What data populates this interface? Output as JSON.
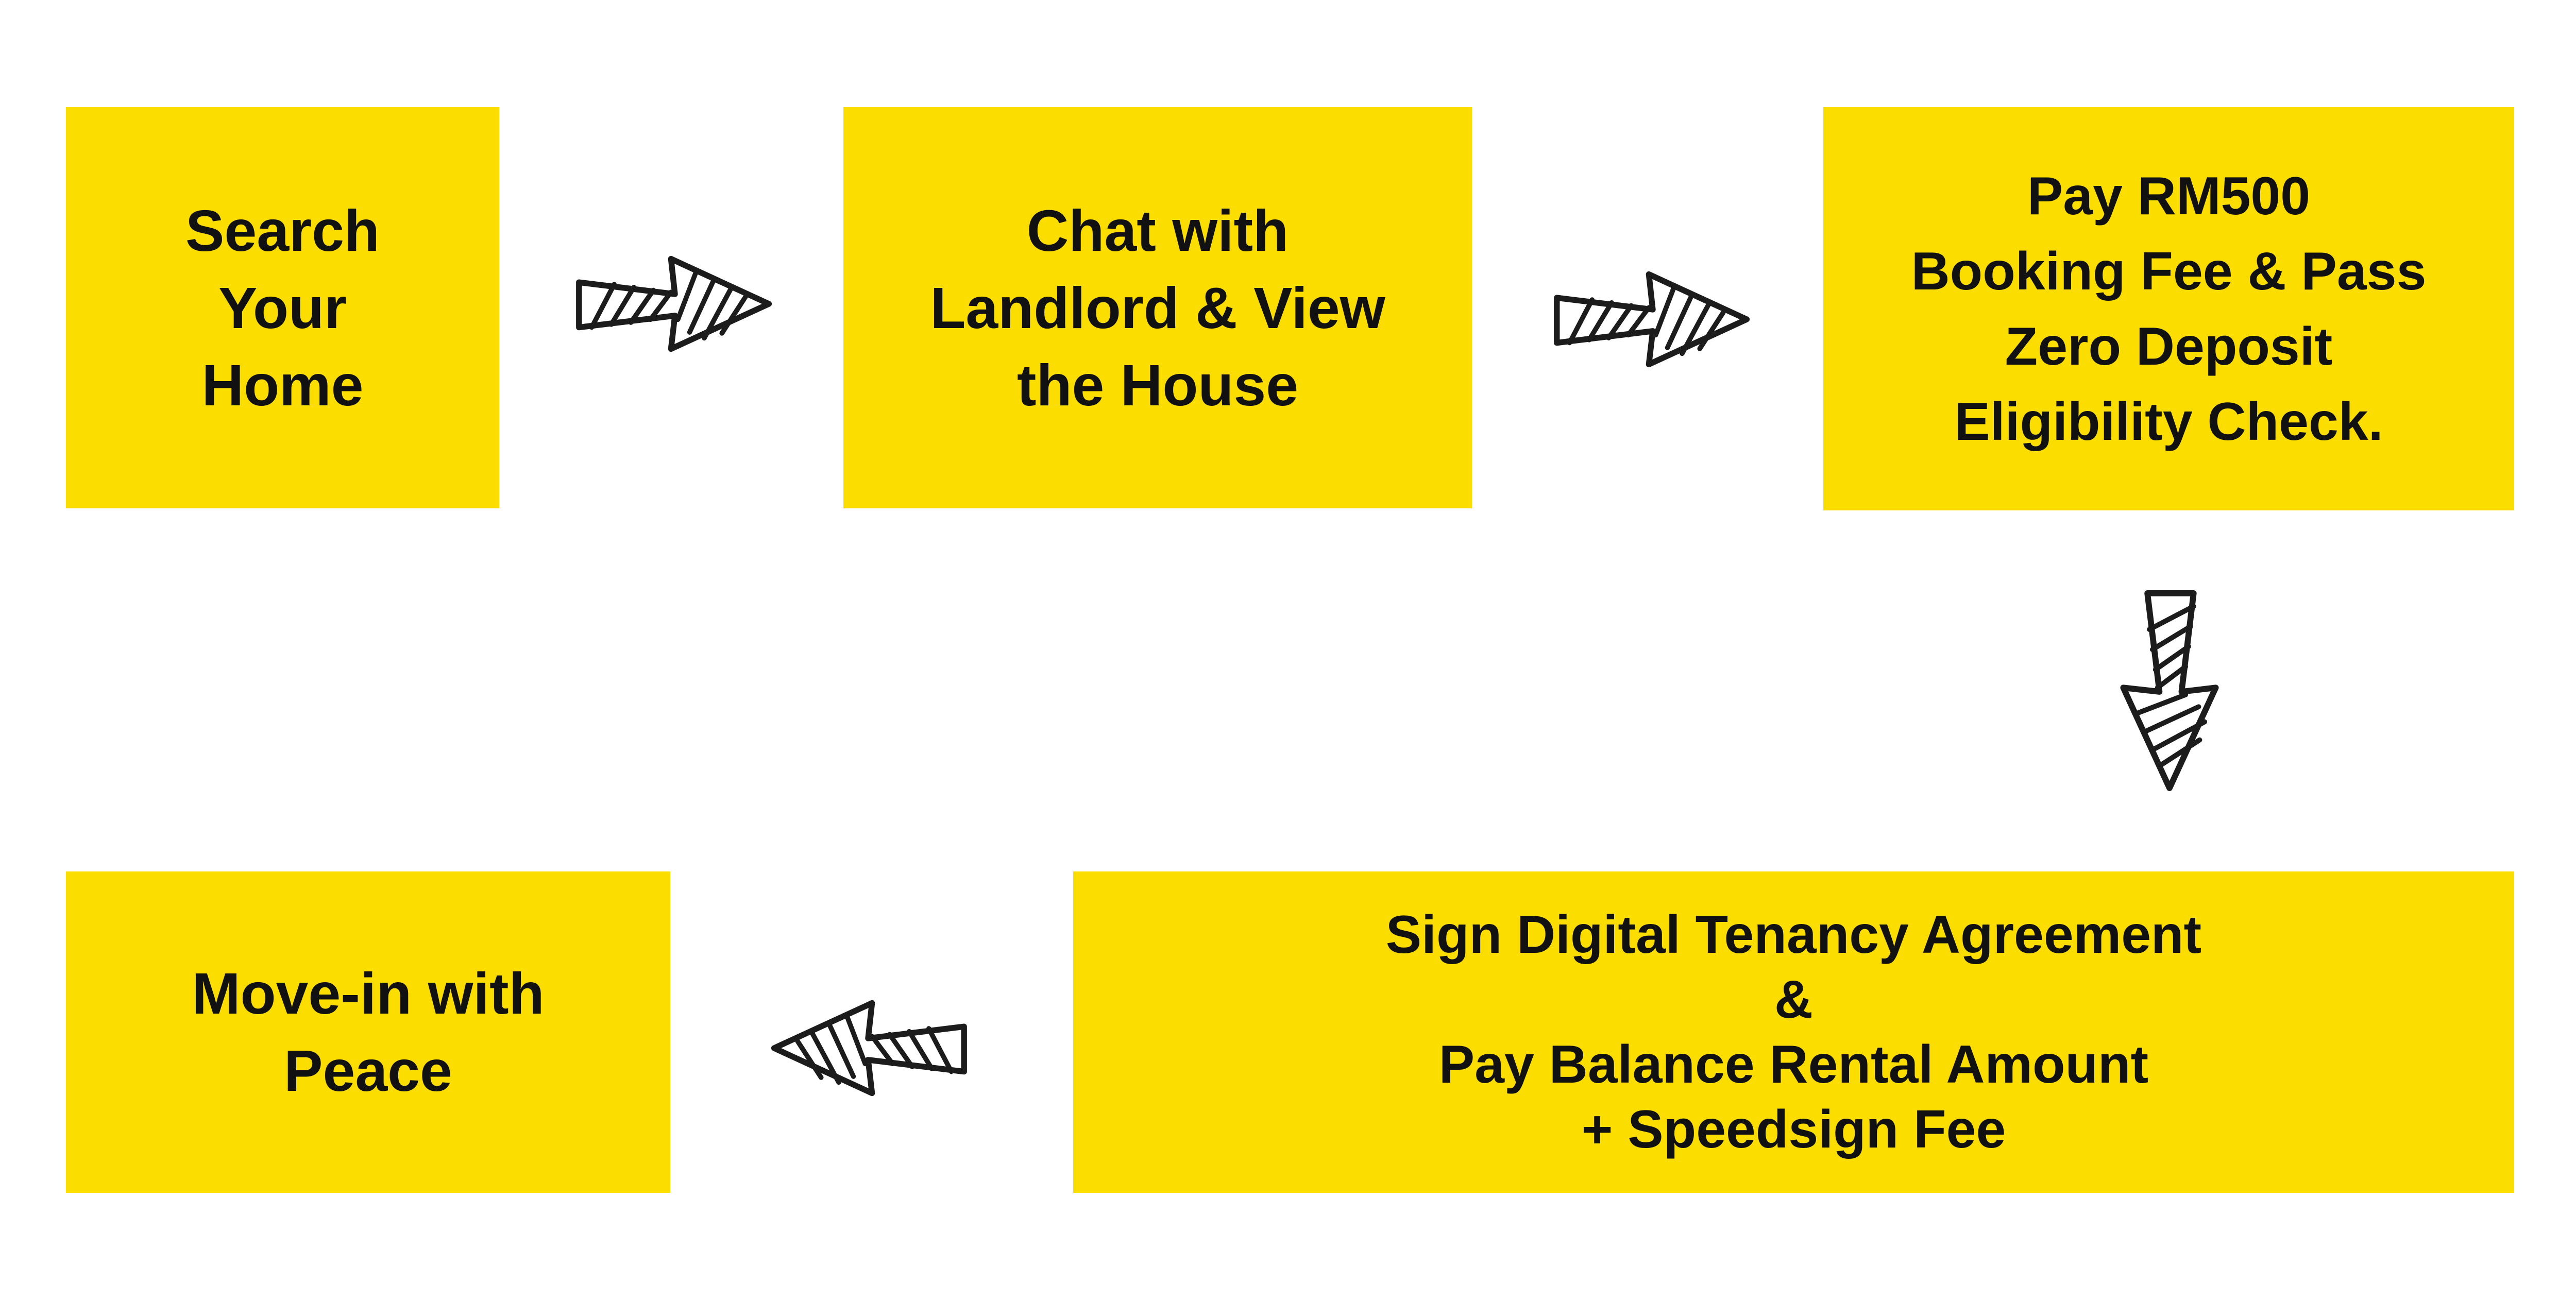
{
  "colors": {
    "box_fill": "#fbdd00",
    "text": "#111111",
    "arrow_stroke": "#1c1c1c",
    "background": "#ffffff"
  },
  "steps": [
    {
      "lines": [
        "Search",
        "Your",
        "Home"
      ]
    },
    {
      "lines": [
        "Chat with",
        "Landlord & View",
        "the House"
      ]
    },
    {
      "lines": [
        "Pay RM500",
        "Booking Fee & Pass",
        "Zero Deposit",
        "Eligibility Check."
      ]
    },
    {
      "lines": [
        "Sign Digital Tenancy Agreement",
        "&",
        "Pay Balance Rental Amount",
        "+ Speedsign Fee"
      ]
    },
    {
      "lines": [
        "Move-in with",
        "Peace"
      ]
    }
  ],
  "arrows": [
    {
      "from": "step-1",
      "to": "step-2",
      "direction": "right",
      "icon": "hatched-arrow-icon"
    },
    {
      "from": "step-2",
      "to": "step-3",
      "direction": "right",
      "icon": "hatched-arrow-icon"
    },
    {
      "from": "step-3",
      "to": "step-4",
      "direction": "down",
      "icon": "hatched-arrow-icon"
    },
    {
      "from": "step-4",
      "to": "step-5",
      "direction": "left",
      "icon": "hatched-arrow-icon"
    }
  ]
}
